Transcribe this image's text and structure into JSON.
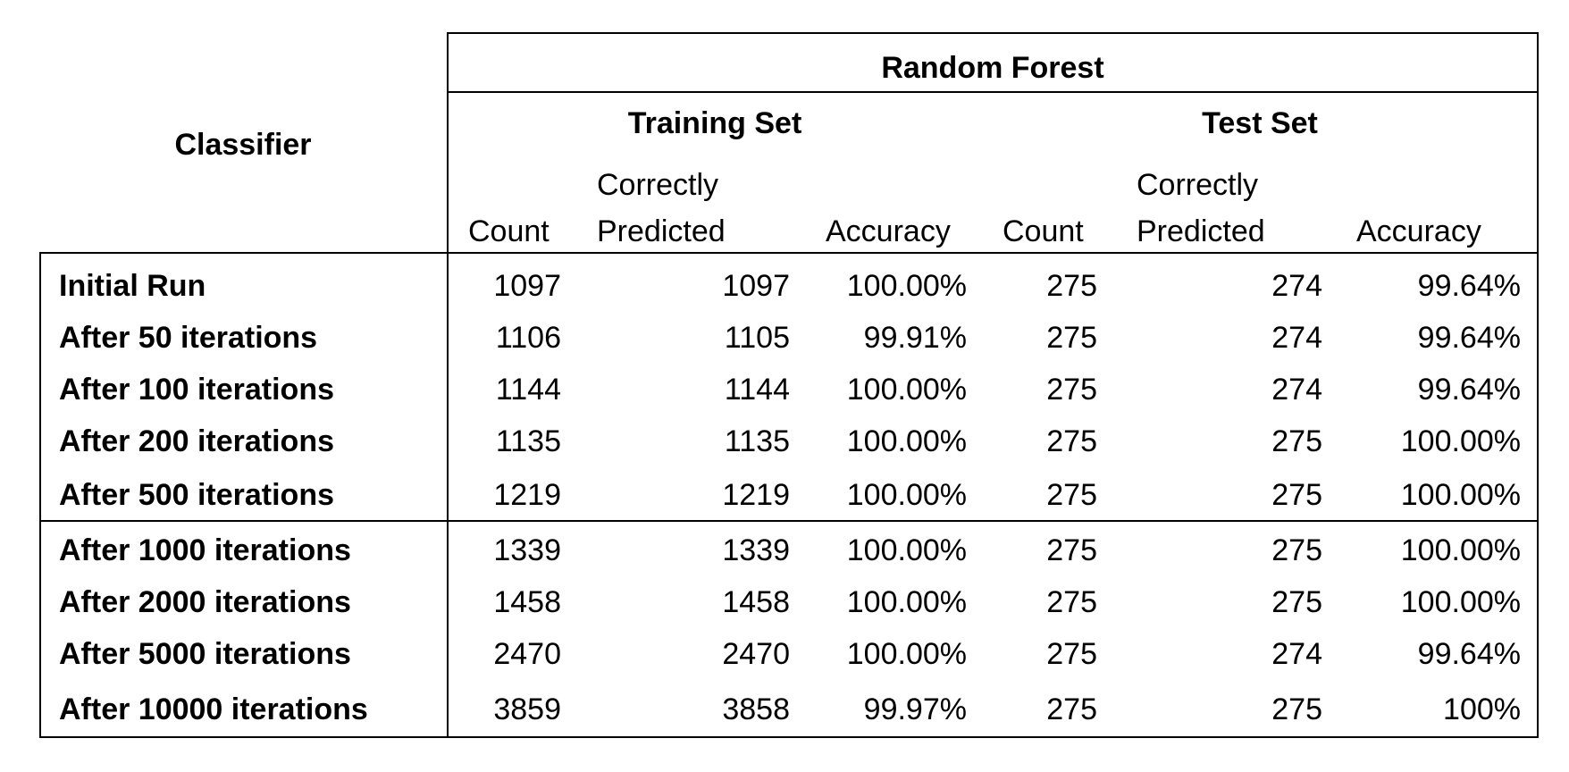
{
  "table": {
    "classifier_header": "Classifier",
    "model_header": "Random Forest",
    "groups": [
      "Training Set",
      "Test Set"
    ],
    "columns": {
      "count": "Count",
      "correctly_l1": "Correctly",
      "correctly_l2": "Predicted",
      "accuracy": "Accuracy"
    },
    "rows": [
      {
        "label": "Initial Run",
        "tr_count": "1097",
        "tr_correct": "1097",
        "tr_acc": "100.00%",
        "te_count": "275",
        "te_correct": "274",
        "te_acc": "99.64%"
      },
      {
        "label": "After 50 iterations",
        "tr_count": "1106",
        "tr_correct": "1105",
        "tr_acc": "99.91%",
        "te_count": "275",
        "te_correct": "274",
        "te_acc": "99.64%"
      },
      {
        "label": "After 100 iterations",
        "tr_count": "1144",
        "tr_correct": "1144",
        "tr_acc": "100.00%",
        "te_count": "275",
        "te_correct": "274",
        "te_acc": "99.64%"
      },
      {
        "label": "After 200 iterations",
        "tr_count": "1135",
        "tr_correct": "1135",
        "tr_acc": "100.00%",
        "te_count": "275",
        "te_correct": "275",
        "te_acc": "100.00%"
      },
      {
        "label": "After 500 iterations",
        "tr_count": "1219",
        "tr_correct": "1219",
        "tr_acc": "100.00%",
        "te_count": "275",
        "te_correct": "275",
        "te_acc": "100.00%"
      },
      {
        "label": "After 1000 iterations",
        "tr_count": "1339",
        "tr_correct": "1339",
        "tr_acc": "100.00%",
        "te_count": "275",
        "te_correct": "275",
        "te_acc": "100.00%"
      },
      {
        "label": "After 2000 iterations",
        "tr_count": "1458",
        "tr_correct": "1458",
        "tr_acc": "100.00%",
        "te_count": "275",
        "te_correct": "275",
        "te_acc": "100.00%"
      },
      {
        "label": "After 5000 iterations",
        "tr_count": "2470",
        "tr_correct": "2470",
        "tr_acc": "100.00%",
        "te_count": "275",
        "te_correct": "274",
        "te_acc": "99.64%"
      },
      {
        "label": "After 10000 iterations",
        "tr_count": "3859",
        "tr_correct": "3858",
        "tr_acc": "99.97%",
        "te_count": "275",
        "te_correct": "275",
        "te_acc": "100%"
      }
    ]
  }
}
